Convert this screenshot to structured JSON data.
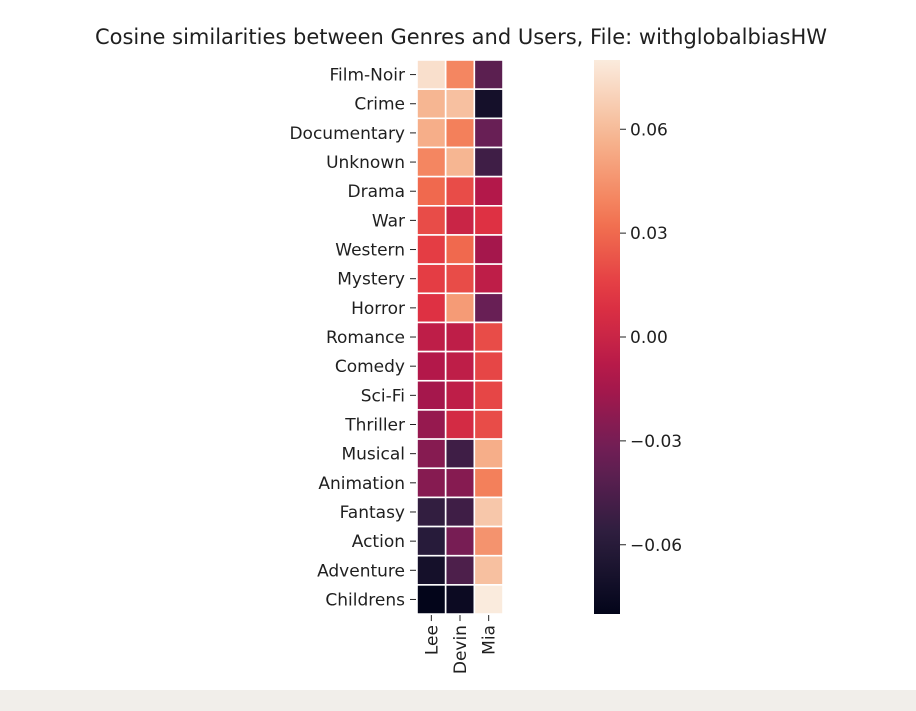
{
  "chart_data": {
    "type": "heatmap",
    "title": "Cosine similarities between Genres and Users, File: withglobalbiasHW",
    "xlabel": "",
    "ylabel": "",
    "columns": [
      "Lee",
      "Devin",
      "Mia"
    ],
    "rows": [
      "Film-Noir",
      "Crime",
      "Documentary",
      "Unknown",
      "Drama",
      "War",
      "Western",
      "Mystery",
      "Horror",
      "Romance",
      "Comedy",
      "Sci-Fi",
      "Thriller",
      "Musical",
      "Animation",
      "Fantasy",
      "Action",
      "Adventure",
      "Childrens"
    ],
    "values": [
      [
        0.075,
        0.04,
        -0.04
      ],
      [
        0.058,
        0.062,
        -0.07
      ],
      [
        0.055,
        0.038,
        -0.035
      ],
      [
        0.04,
        0.058,
        -0.05
      ],
      [
        0.03,
        0.02,
        -0.01
      ],
      [
        0.02,
        0.0,
        0.01
      ],
      [
        0.015,
        0.03,
        -0.015
      ],
      [
        0.015,
        0.02,
        -0.005
      ],
      [
        0.01,
        0.048,
        -0.035
      ],
      [
        -0.005,
        -0.005,
        0.02
      ],
      [
        -0.01,
        -0.005,
        0.018
      ],
      [
        -0.015,
        -0.005,
        0.018
      ],
      [
        -0.02,
        0.005,
        0.02
      ],
      [
        -0.025,
        -0.05,
        0.055
      ],
      [
        -0.025,
        -0.025,
        0.038
      ],
      [
        -0.055,
        -0.05,
        0.065
      ],
      [
        -0.06,
        -0.03,
        0.045
      ],
      [
        -0.07,
        -0.045,
        0.062
      ],
      [
        -0.08,
        -0.075,
        0.08
      ]
    ],
    "colorbar": {
      "vmin": -0.08,
      "vmax": 0.08,
      "ticks": [
        0.06,
        0.03,
        0.0,
        -0.03,
        -0.06
      ],
      "tick_labels": [
        "0.06",
        "0.03",
        "0.00",
        "−0.03",
        "−0.06"
      ]
    },
    "colormap": "rocket"
  }
}
